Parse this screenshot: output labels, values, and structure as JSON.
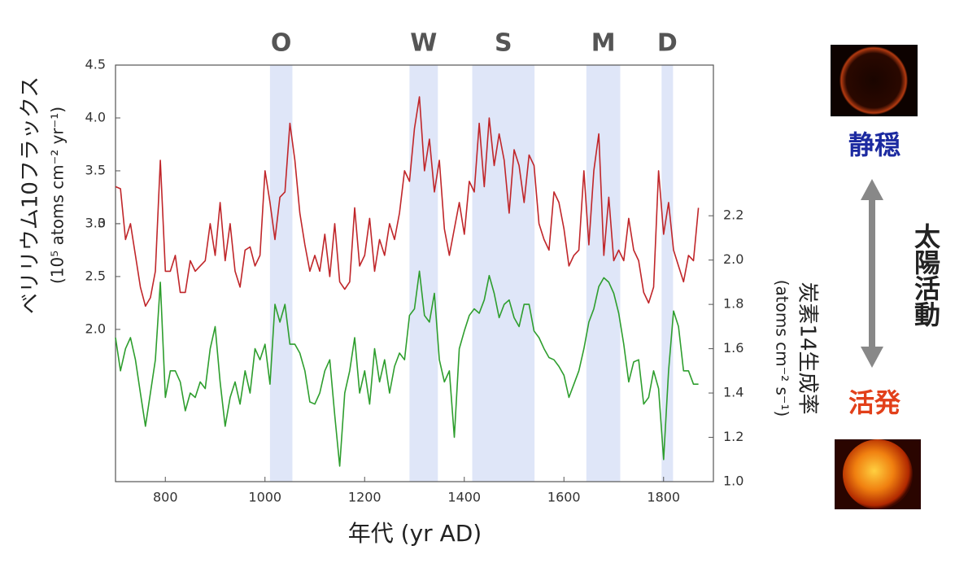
{
  "chart_data": {
    "type": "line",
    "xlabel": "年代 (yr AD)",
    "ylabel": "ベリリウム10フラックス",
    "ylabel_unit": "(10⁵ atoms cm⁻² yr⁻¹)",
    "y2label": "炭素14生成率",
    "y2label_unit": "(atoms cm⁻² s⁻¹)",
    "side_labels": {
      "quiet": "静穏",
      "active": "活発",
      "solar_activity": "太陽活動"
    },
    "bands": [
      {
        "label": "O",
        "start": 1010,
        "end": 1055
      },
      {
        "label": "W",
        "start": 1290,
        "end": 1347
      },
      {
        "label": "S",
        "start": 1416,
        "end": 1541
      },
      {
        "label": "M",
        "start": 1645,
        "end": 1713
      },
      {
        "label": "D",
        "start": 1796,
        "end": 1819
      }
    ],
    "band_color": "#dfe6f8",
    "xlim": [
      700,
      1900
    ],
    "xticks": [
      800,
      1000,
      1200,
      1400,
      1600,
      1800
    ],
    "ylim": [
      0.56,
      4.5
    ],
    "yticks": [
      {
        "value": 2,
        "label": "2.0"
      },
      2.5,
      3,
      {
        "value": 3,
        "label": "3.0"
      },
      3.5,
      {
        "value": 4,
        "label": "4.0"
      },
      4.5
    ],
    "y2lim": [
      1.0,
      2.88
    ],
    "y2ticks": [
      {
        "value": 1,
        "label": "1.0"
      },
      1.2,
      1.4,
      1.6,
      1.8,
      {
        "value": 2,
        "label": "2.0"
      },
      2.2
    ],
    "x": [
      700,
      710,
      720,
      730,
      740,
      750,
      760,
      770,
      780,
      790,
      800,
      810,
      820,
      830,
      840,
      850,
      860,
      870,
      880,
      890,
      900,
      910,
      920,
      930,
      940,
      950,
      960,
      970,
      980,
      990,
      1000,
      1010,
      1020,
      1030,
      1040,
      1050,
      1060,
      1070,
      1080,
      1090,
      1100,
      1110,
      1120,
      1130,
      1140,
      1150,
      1160,
      1170,
      1180,
      1190,
      1200,
      1210,
      1220,
      1230,
      1240,
      1250,
      1260,
      1270,
      1280,
      1290,
      1300,
      1310,
      1320,
      1330,
      1340,
      1350,
      1360,
      1370,
      1380,
      1390,
      1400,
      1410,
      1420,
      1430,
      1440,
      1450,
      1460,
      1470,
      1480,
      1490,
      1500,
      1510,
      1520,
      1530,
      1540,
      1550,
      1560,
      1570,
      1580,
      1590,
      1600,
      1610,
      1620,
      1630,
      1640,
      1650,
      1660,
      1670,
      1680,
      1690,
      1700,
      1710,
      1720,
      1730,
      1740,
      1750,
      1760,
      1770,
      1780,
      1790,
      1800,
      1810,
      1820,
      1830,
      1840,
      1850,
      1860,
      1870
    ],
    "series": [
      {
        "name": "ベリリウム10フラックス",
        "color": "#c0262a",
        "axis": "y",
        "values": [
          3.35,
          3.33,
          2.85,
          3.0,
          2.7,
          2.4,
          2.22,
          2.3,
          2.55,
          3.6,
          2.55,
          2.55,
          2.7,
          2.35,
          2.35,
          2.65,
          2.55,
          2.6,
          2.65,
          3.0,
          2.7,
          3.2,
          2.65,
          3.0,
          2.55,
          2.4,
          2.75,
          2.78,
          2.6,
          2.7,
          3.5,
          3.2,
          2.85,
          3.25,
          3.3,
          3.95,
          3.6,
          3.1,
          2.8,
          2.55,
          2.7,
          2.55,
          2.9,
          2.5,
          3.0,
          2.45,
          2.38,
          2.45,
          3.15,
          2.6,
          2.7,
          3.05,
          2.55,
          2.85,
          2.7,
          3.0,
          2.85,
          3.1,
          3.5,
          3.4,
          3.9,
          4.2,
          3.5,
          3.8,
          3.3,
          3.6,
          2.95,
          2.7,
          2.95,
          3.2,
          2.9,
          3.4,
          3.3,
          3.95,
          3.35,
          4.0,
          3.55,
          3.85,
          3.6,
          3.1,
          3.7,
          3.55,
          3.2,
          3.65,
          3.55,
          3.0,
          2.85,
          2.75,
          3.3,
          3.2,
          2.95,
          2.6,
          2.7,
          2.75,
          3.5,
          2.8,
          3.5,
          3.85,
          2.7,
          3.25,
          2.65,
          2.75,
          2.65,
          3.05,
          2.75,
          2.65,
          2.35,
          2.25,
          2.4,
          3.5,
          2.9,
          3.2,
          2.75,
          2.6,
          2.45,
          2.7,
          2.65,
          3.15
        ]
      },
      {
        "name": "炭素14生成率",
        "color": "#2e9e2e",
        "axis": "y2",
        "values": [
          1.65,
          1.5,
          1.6,
          1.65,
          1.55,
          1.4,
          1.25,
          1.4,
          1.55,
          1.9,
          1.38,
          1.5,
          1.5,
          1.45,
          1.32,
          1.4,
          1.38,
          1.45,
          1.42,
          1.6,
          1.7,
          1.45,
          1.25,
          1.38,
          1.45,
          1.35,
          1.5,
          1.4,
          1.6,
          1.55,
          1.62,
          1.44,
          1.8,
          1.72,
          1.8,
          1.62,
          1.62,
          1.58,
          1.5,
          1.36,
          1.35,
          1.4,
          1.5,
          1.55,
          1.3,
          1.07,
          1.4,
          1.5,
          1.65,
          1.4,
          1.5,
          1.35,
          1.6,
          1.45,
          1.55,
          1.4,
          1.52,
          1.58,
          1.55,
          1.75,
          1.78,
          1.95,
          1.75,
          1.72,
          1.85,
          1.55,
          1.45,
          1.5,
          1.2,
          1.6,
          1.68,
          1.75,
          1.78,
          1.76,
          1.82,
          1.93,
          1.85,
          1.74,
          1.8,
          1.82,
          1.74,
          1.7,
          1.8,
          1.8,
          1.68,
          1.65,
          1.6,
          1.56,
          1.55,
          1.52,
          1.48,
          1.38,
          1.44,
          1.5,
          1.6,
          1.72,
          1.78,
          1.88,
          1.92,
          1.9,
          1.85,
          1.76,
          1.62,
          1.45,
          1.54,
          1.55,
          1.35,
          1.38,
          1.5,
          1.42,
          1.1,
          1.5,
          1.77,
          1.7,
          1.5,
          1.5,
          1.44,
          1.44
        ]
      }
    ]
  }
}
